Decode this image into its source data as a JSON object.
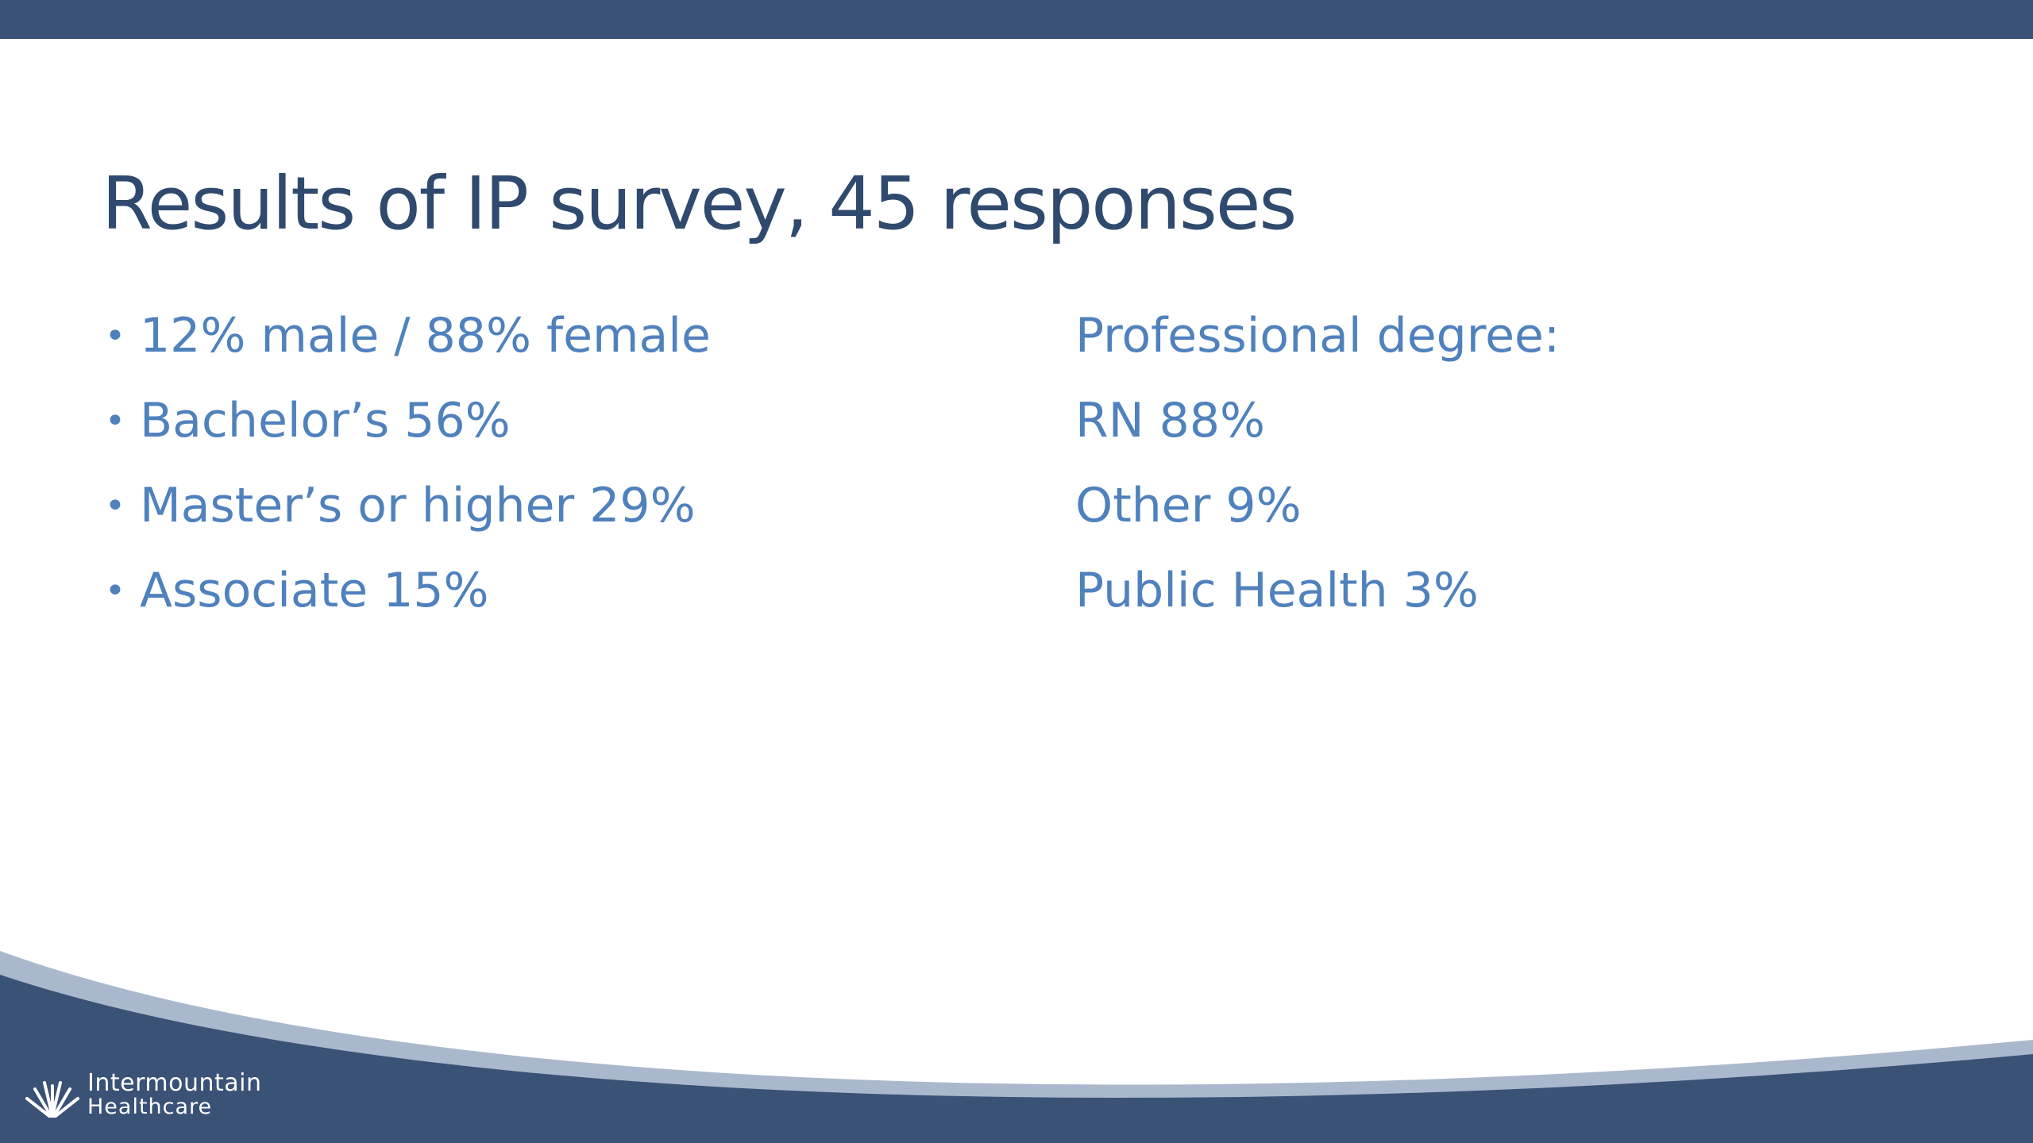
{
  "slide": {
    "title": "Results of IP survey,  45 responses",
    "left_items": [
      "12% male / 88% female",
      "Bachelor’s 56%",
      "Master’s or higher 29%",
      "Associate 15%"
    ],
    "right_items": [
      "Professional degree:",
      "RN 88%",
      "Other 9%",
      "Public Health 3%"
    ]
  },
  "branding": {
    "logo_line1": "Intermountain",
    "logo_line2": "Healthcare",
    "logo_icon": "intermountain-hands-icon"
  },
  "colors": {
    "navy": "#3a5276",
    "title": "#2f4a6e",
    "body_text": "#4f81bd",
    "swoosh_light": "#a9b8cc"
  }
}
